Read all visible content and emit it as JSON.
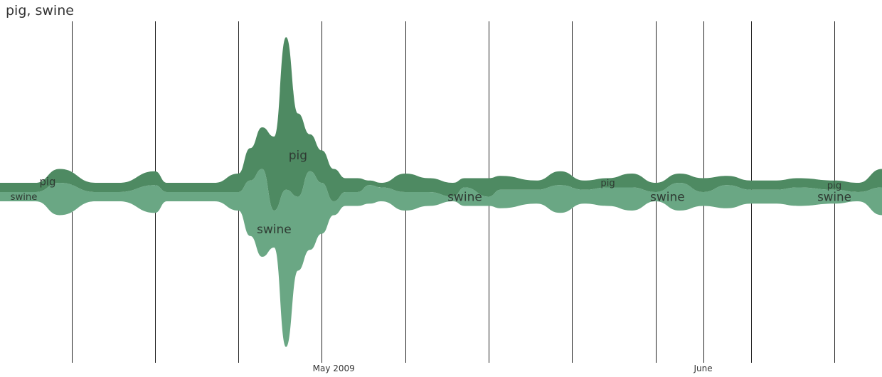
{
  "chart_data": {
    "type": "area",
    "style": "streamgraph",
    "title": "pig, swine",
    "xlabel": "",
    "ylabel": "",
    "x_axis": {
      "tick_labels": [
        {
          "date": "2009-05-01",
          "label": "May 2009"
        },
        {
          "date": "2009-06-01",
          "label": "June"
        }
      ],
      "gridline_dates": [
        "2009-04-09",
        "2009-04-16",
        "2009-04-23",
        "2009-04-30",
        "2009-05-07",
        "2009-05-14",
        "2009-05-21",
        "2009-05-28",
        "2009-06-01",
        "2009-06-05",
        "2009-06-12"
      ],
      "xlim": [
        "2009-04-03",
        "2009-06-16"
      ]
    },
    "grid": true,
    "legend": "none (labels inside streams)",
    "colors": {
      "pig": "#4e8a62",
      "swine": "#6aa784"
    },
    "x": [
      "2009-04-03",
      "2009-04-06",
      "2009-04-08",
      "2009-04-11",
      "2009-04-13",
      "2009-04-16",
      "2009-04-17",
      "2009-04-19",
      "2009-04-21",
      "2009-04-23",
      "2009-04-24",
      "2009-04-25",
      "2009-04-26",
      "2009-04-27",
      "2009-04-28",
      "2009-04-29",
      "2009-04-30",
      "2009-05-01",
      "2009-05-02",
      "2009-05-03",
      "2009-05-04",
      "2009-05-05",
      "2009-05-07",
      "2009-05-09",
      "2009-05-11",
      "2009-05-12",
      "2009-05-14",
      "2009-05-15",
      "2009-05-18",
      "2009-05-20",
      "2009-05-22",
      "2009-05-24",
      "2009-05-26",
      "2009-05-28",
      "2009-05-30",
      "2009-06-01",
      "2009-06-03",
      "2009-06-05",
      "2009-06-07",
      "2009-06-09",
      "2009-06-12",
      "2009-06-14",
      "2009-06-16"
    ],
    "series": [
      {
        "name": "pig",
        "values": [
          2,
          2,
          3,
          2,
          2,
          3,
          2,
          2,
          2,
          4,
          7,
          9,
          16,
          33,
          18,
          8,
          7,
          7,
          3,
          3,
          1,
          1,
          4,
          3,
          3,
          2,
          4,
          3,
          2,
          3,
          2,
          2,
          3,
          2,
          2,
          3,
          2,
          2,
          2,
          2,
          2,
          2,
          4
        ]
      },
      {
        "name": "swine",
        "values": [
          2,
          2,
          7,
          2,
          2,
          6,
          2,
          2,
          2,
          4,
          12,
          19,
          8,
          34,
          16,
          17,
          11,
          3,
          3,
          3,
          4,
          3,
          4,
          3,
          1,
          4,
          2,
          4,
          3,
          6,
          3,
          4,
          5,
          2,
          6,
          3,
          5,
          3,
          3,
          4,
          3,
          2,
          6
        ]
      }
    ],
    "annotations": [
      {
        "series": "pig",
        "text": "pig",
        "date": "2009-04-07"
      },
      {
        "series": "swine",
        "text": "swine",
        "date": "2009-04-05"
      },
      {
        "series": "pig",
        "text": "pig",
        "date": "2009-04-28"
      },
      {
        "series": "swine",
        "text": "swine",
        "date": "2009-04-26"
      },
      {
        "series": "swine",
        "text": "swine",
        "date": "2009-05-12"
      },
      {
        "series": "pig",
        "text": "pig",
        "date": "2009-05-24"
      },
      {
        "series": "swine",
        "text": "swine",
        "date": "2009-05-29"
      },
      {
        "series": "pig",
        "text": "pig",
        "date": "2009-06-12"
      },
      {
        "series": "swine",
        "text": "swine",
        "date": "2009-06-12"
      }
    ]
  }
}
